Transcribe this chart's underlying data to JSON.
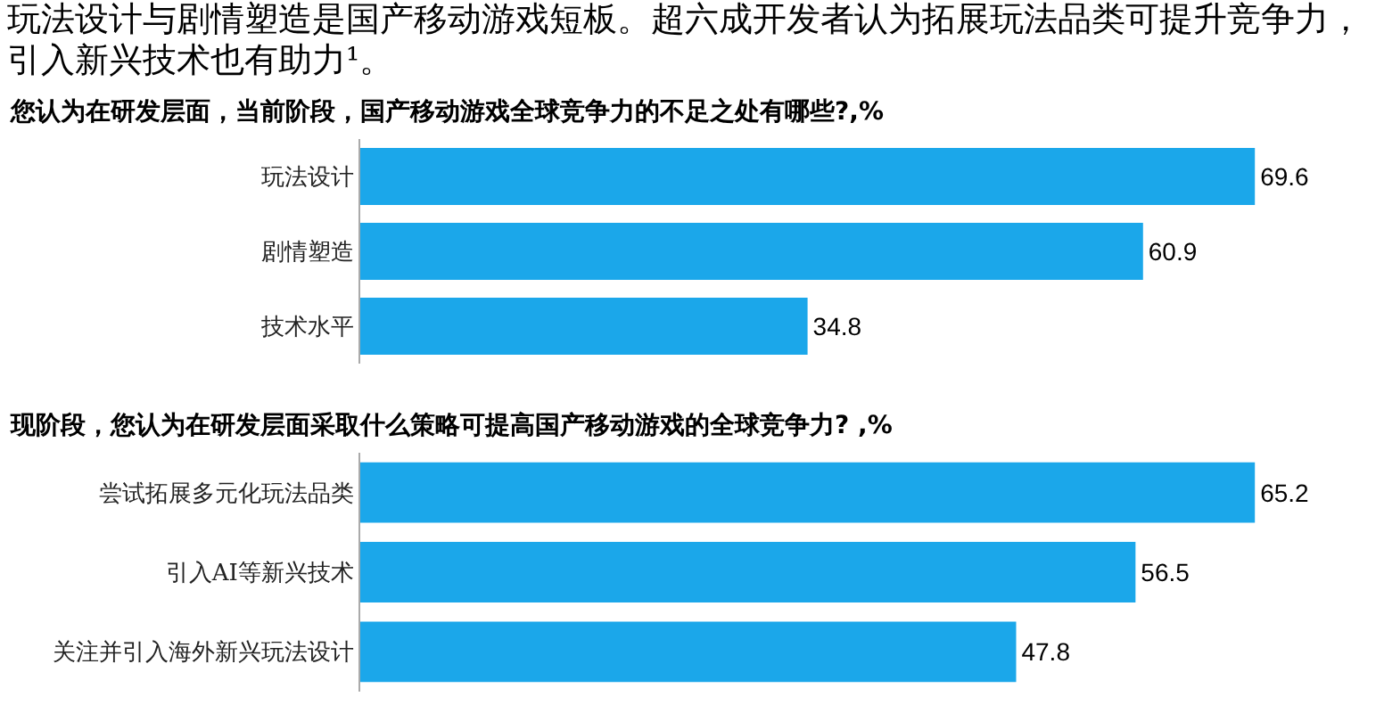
{
  "chart_data": [
    {
      "type": "bar",
      "orientation": "horizontal",
      "title": "玩法设计与剧情塑造是国产移动游戏短板。超六成开发者认为拓展玩法品类可提升竞争力，引入新兴技术也有助力¹。",
      "subtitle": "您认为在研发层面，当前阶段，国产移动游戏全球竞争力的不足之处有哪些?,%",
      "categories": [
        "玩法设计",
        "剧情塑造",
        "技术水平"
      ],
      "values": [
        69.6,
        60.9,
        34.8
      ],
      "color": "#1ba7ea",
      "data_labels": true
    },
    {
      "type": "bar",
      "orientation": "horizontal",
      "title": "现阶段，您认为在研发层面采取什么策略可提高国产移动游戏的全球竞争力? ,%",
      "categories": [
        "尝试拓展多元化玩法品类",
        "引入AI等新兴技术",
        "关注并引入海外新兴玩法设计"
      ],
      "values": [
        65.2,
        56.5,
        47.8
      ],
      "color": "#1ba7ea",
      "data_labels": true
    }
  ]
}
